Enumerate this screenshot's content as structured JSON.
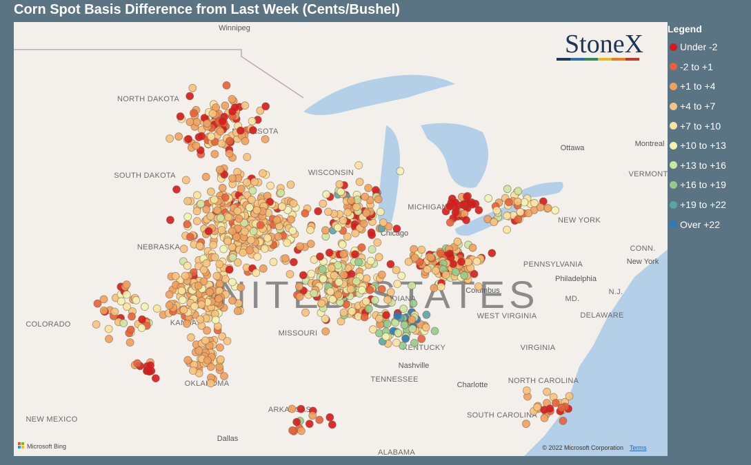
{
  "title": "Corn Spot Basis Difference from Last Week (Cents/Bushel)",
  "legend": {
    "title": "Legend",
    "items": [
      {
        "label": "Under -2",
        "color": "#d7191c"
      },
      {
        "label": "-2 to +1",
        "color": "#e8603a"
      },
      {
        "label": "+1 to +4",
        "color": "#f0a05e"
      },
      {
        "label": "+4 to +7",
        "color": "#f6c27c"
      },
      {
        "label": "+7 to +10",
        "color": "#fae3a0"
      },
      {
        "label": "+10 to +13",
        "color": "#f1f3b2"
      },
      {
        "label": "+13 to +16",
        "color": "#cbe5a2"
      },
      {
        "label": "+16 to +19",
        "color": "#93cb8f"
      },
      {
        "label": "+19 to +22",
        "color": "#5ca4a6"
      },
      {
        "label": "Over +22",
        "color": "#2c7bb6"
      }
    ]
  },
  "logo": "StoneX",
  "map_labels": [
    "Winnipeg",
    "NORTH DAKOTA",
    "MINNESOTA",
    "SOUTH DAKOTA",
    "WISCONSIN",
    "MICHIGAN",
    "Chicago",
    "NEBRASKA",
    "UNITED STATES",
    "COLORADO",
    "KANSAS",
    "MISSOURI",
    "INDIANA",
    "Columbus",
    "OKLAHOMA",
    "ARKANSAS",
    "NEW MEXICO",
    "Dallas",
    "ALABAMA",
    "TENNESSEE",
    "Nashville",
    "KENTUCKY",
    "WEST VIRGINIA",
    "VIRGINIA",
    "PENNSYLVANIA",
    "Philadelphia",
    "NEW YORK",
    "New York",
    "Ottawa",
    "Montreal",
    "VERMONT",
    "CONN.",
    "N.J.",
    "MD.",
    "DELAWARE",
    "Charlotte",
    "NORTH CAROLINA",
    "SOUTH CAROLINA"
  ],
  "attribution": {
    "provider": "Microsoft Bing",
    "copyright": "© 2022 Microsoft Corporation",
    "terms": "Terms"
  }
}
